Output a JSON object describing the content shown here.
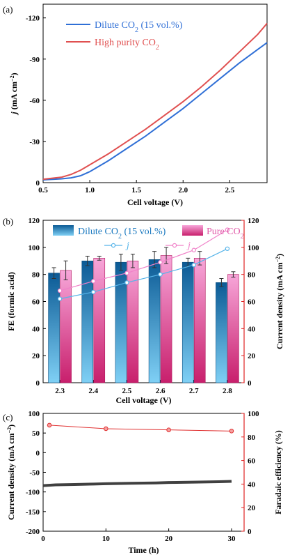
{
  "colors": {
    "dilute": "#2f6fd6",
    "high": "#e05050",
    "bar_blue": "#1c7ac0",
    "bar_pink": "#e05aa8",
    "line_blue": "#56b4e9",
    "line_pink": "#f080c8",
    "red_axis": "#e02020",
    "stability_black": "#404040",
    "stability_red": "#e03030"
  },
  "chart_data": [
    {
      "type": "line",
      "panel_label": "(a)",
      "xlabel": "Cell voltage (V)",
      "ylabel_main": "j",
      "ylabel_unit": " (mA cm",
      "ylabel_sup": "−2",
      "ylabel_end": ")",
      "xlim": [
        0.5,
        2.9
      ],
      "ylim": [
        -130,
        0
      ],
      "y_reversed": true,
      "xticks": [
        0.5,
        1.0,
        1.5,
        2.0,
        2.5
      ],
      "yticks": [
        0,
        -30,
        -60,
        -90,
        -120
      ],
      "series": [
        {
          "name_main": "Dilute CO",
          "name_sub": "2",
          "name_tail": " (15 vol.%)",
          "color_key": "dilute",
          "x": [
            0.5,
            0.7,
            0.8,
            0.9,
            1.0,
            1.2,
            1.4,
            1.6,
            1.8,
            2.0,
            2.2,
            2.4,
            2.6,
            2.8,
            2.9
          ],
          "y": [
            -2,
            -2.8,
            -3.5,
            -5,
            -8,
            -16,
            -25,
            -34,
            -44,
            -54,
            -65,
            -76,
            -87,
            -97,
            -102
          ]
        },
        {
          "name_main": "High purity CO",
          "name_sub": "2",
          "name_tail": "",
          "color_key": "high",
          "x": [
            0.5,
            0.7,
            0.8,
            0.9,
            1.0,
            1.2,
            1.4,
            1.6,
            1.8,
            2.0,
            2.2,
            2.4,
            2.6,
            2.8,
            2.9
          ],
          "y": [
            -2.5,
            -4,
            -6,
            -9,
            -13,
            -21,
            -30,
            -39,
            -49,
            -59,
            -70,
            -82,
            -95,
            -108,
            -116
          ]
        }
      ]
    },
    {
      "type": "bar",
      "panel_label": "(b)",
      "xlabel": "Cell voltage (V)",
      "ylabel_left": "FE (formic acid)",
      "ylabel_right_main": "Current density (mA cm",
      "ylabel_right_sup": "−2",
      "ylabel_right_end": ")",
      "categories": [
        "2.3",
        "2.4",
        "2.5",
        "2.6",
        "2.7",
        "2.8"
      ],
      "ylim": [
        0,
        120
      ],
      "yticks": [
        0,
        20,
        40,
        60,
        80,
        100,
        120
      ],
      "series": [
        {
          "name_main": "Dilute CO",
          "name_sub": "2",
          "name_tail": " (15 vol.%)",
          "values": [
            81,
            90,
            89,
            91,
            89,
            74
          ],
          "errors": [
            4,
            3.5,
            6,
            6,
            3,
            3
          ]
        },
        {
          "name_main": "Pure CO",
          "name_sub": "2",
          "name_tail": "",
          "values": [
            83,
            92,
            90,
            94,
            92,
            80
          ],
          "errors": [
            7,
            1.5,
            5,
            6,
            5,
            2
          ]
        }
      ],
      "line_series": [
        {
          "name": "j",
          "values": [
            62,
            67,
            74,
            80,
            87,
            99
          ]
        },
        {
          "name": "j",
          "values": [
            68,
            75,
            81,
            89,
            98,
            113
          ]
        }
      ]
    },
    {
      "type": "line",
      "panel_label": "(c)",
      "xlabel": "Time (h)",
      "ylabel_left_main": "Current density (mA cm",
      "ylabel_left_sup": "−2",
      "ylabel_left_end": ")",
      "ylabel_right": "Faradaic efficiency (%)",
      "xlim": [
        0,
        32
      ],
      "xticks": [
        0,
        10,
        20,
        30
      ],
      "ylim_left": [
        -200,
        100
      ],
      "yticks_left": [
        100,
        50,
        0,
        -50,
        -100,
        -150,
        -200
      ],
      "ylim_right": [
        0,
        100
      ],
      "yticks_right": [
        0,
        20,
        40,
        60,
        80,
        100
      ],
      "current_density": {
        "x": [
          0,
          2,
          5,
          8,
          10,
          14,
          18,
          20,
          24,
          28,
          30
        ],
        "y": [
          -84,
          -82,
          -81,
          -80,
          -79,
          -78,
          -77,
          -76,
          -75,
          -74,
          -73
        ]
      },
      "faradaic_efficiency": {
        "x": [
          1,
          10,
          20,
          30
        ],
        "y": [
          90,
          87,
          86,
          85
        ]
      }
    }
  ]
}
